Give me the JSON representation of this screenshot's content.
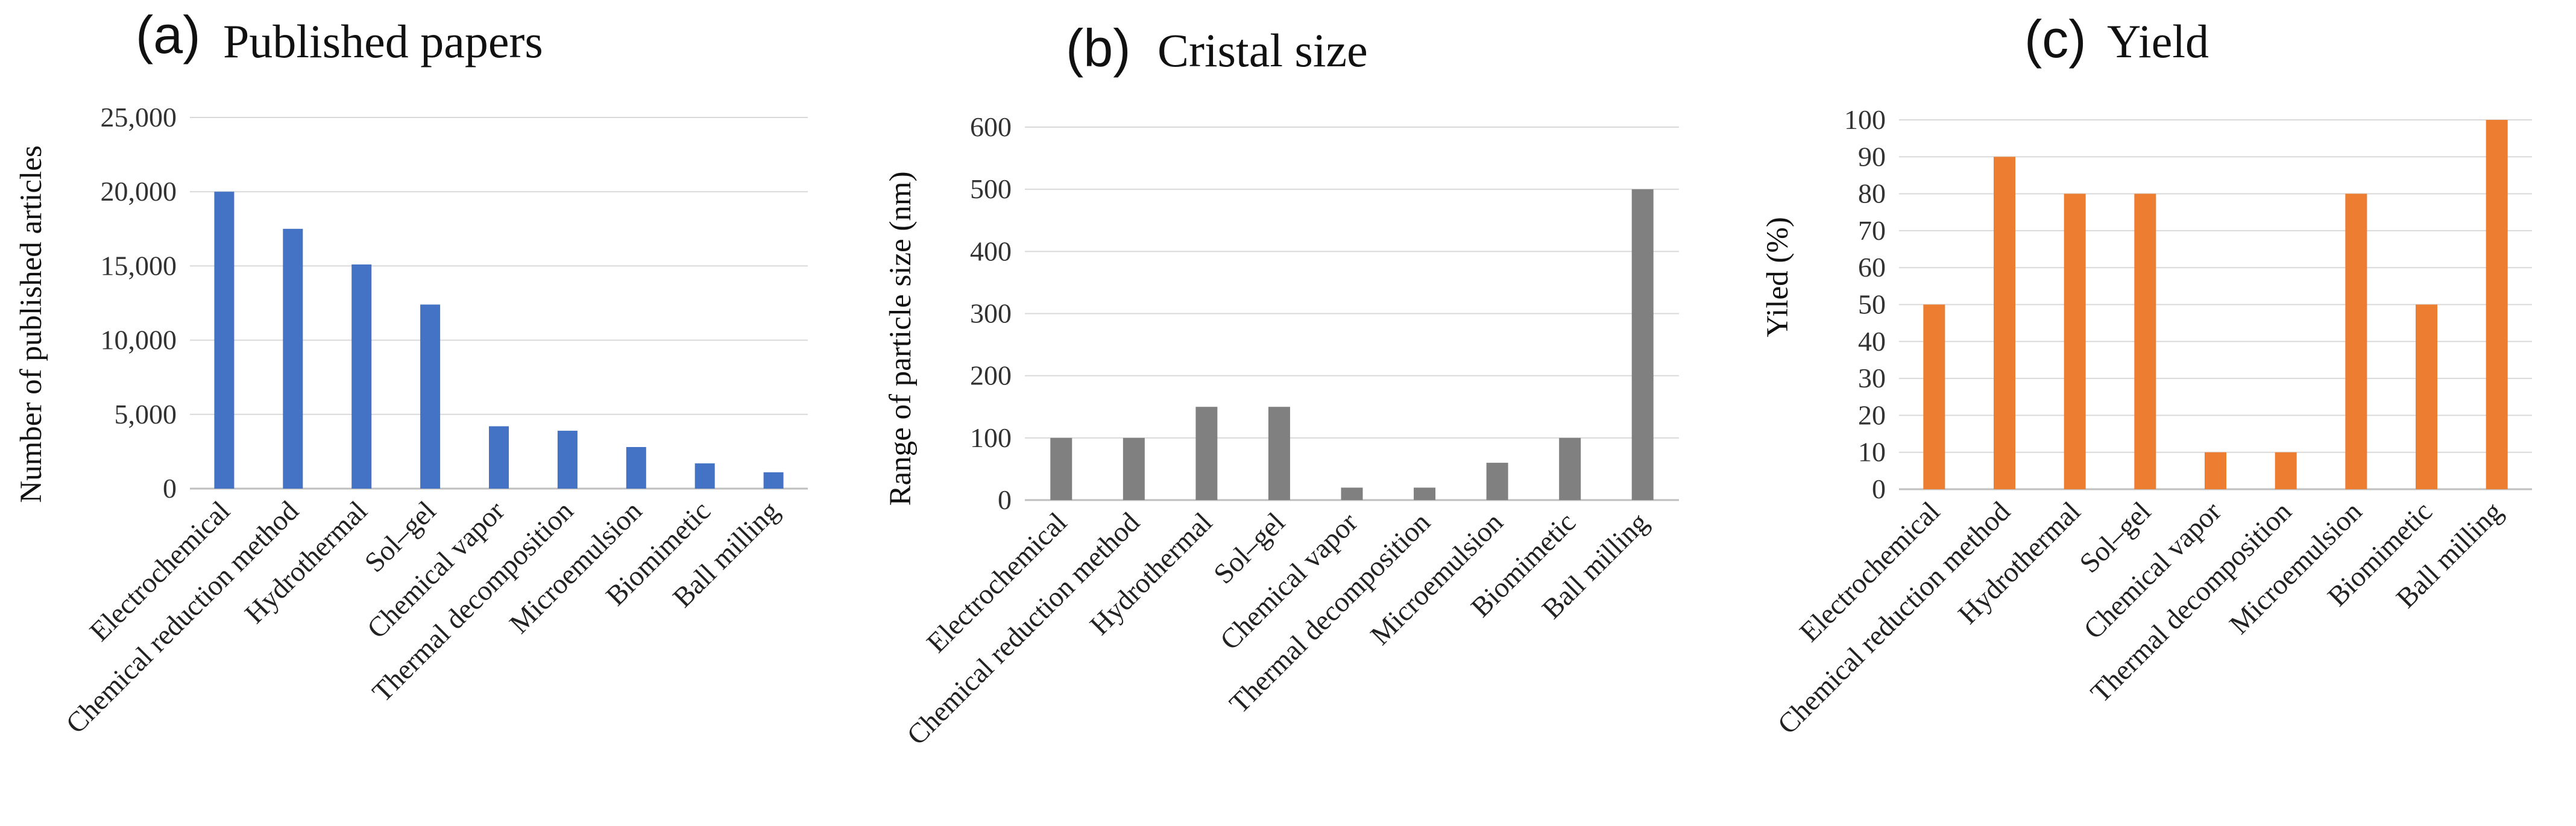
{
  "chart_data": [
    {
      "type": "bar",
      "panel_label": "(a)",
      "title": "Published papers",
      "xlabel": "",
      "ylabel": "Number of published articles",
      "ylim": [
        0,
        25000
      ],
      "ytick_step": 5000,
      "ytick_labels": [
        "0",
        "5,000",
        "10,000",
        "15,000",
        "20,000",
        "25,000"
      ],
      "grid": true,
      "color": "#4472C4",
      "categories": [
        "Electrochemical",
        "Chemical reduction method",
        "Hydrothermal",
        "Sol–gel",
        "Chemical vapor",
        "Thermal decomposition",
        "Microemulsion",
        "Biomimetic",
        "Ball milling"
      ],
      "values": [
        20000,
        17500,
        15100,
        12400,
        4200,
        3900,
        2800,
        1700,
        1100
      ]
    },
    {
      "type": "bar",
      "panel_label": "(b)",
      "title": "Cristal size",
      "xlabel": "",
      "ylabel": "Range of particle size (nm)",
      "ylim": [
        0,
        600
      ],
      "ytick_step": 100,
      "ytick_labels": [
        "0",
        "100",
        "200",
        "300",
        "400",
        "500",
        "600"
      ],
      "grid": true,
      "color": "#808080",
      "categories": [
        "Electrochemical",
        "Chemical reduction method",
        "Hydrothermal",
        "Sol–gel",
        "Chemical vapor",
        "Thermal decomposition",
        "Microemulsion",
        "Biomimetic",
        "Ball milling"
      ],
      "values": [
        100,
        100,
        150,
        150,
        20,
        20,
        60,
        100,
        500
      ]
    },
    {
      "type": "bar",
      "panel_label": "(c)",
      "title": "Yield",
      "xlabel": "",
      "ylabel": "Yiled (%)",
      "ylim": [
        0,
        100
      ],
      "ytick_step": 10,
      "ytick_labels": [
        "0",
        "10",
        "20",
        "30",
        "40",
        "50",
        "60",
        "70",
        "80",
        "90",
        "100"
      ],
      "grid": true,
      "color": "#ED7D31",
      "categories": [
        "Electrochemical",
        "Chemical reduction method",
        "Hydrothermal",
        "Sol–gel",
        "Chemical vapor",
        "Thermal decomposition",
        "Microemulsion",
        "Biomimetic",
        "Ball milling"
      ],
      "values": [
        50,
        90,
        80,
        80,
        10,
        10,
        80,
        50,
        100
      ]
    }
  ]
}
